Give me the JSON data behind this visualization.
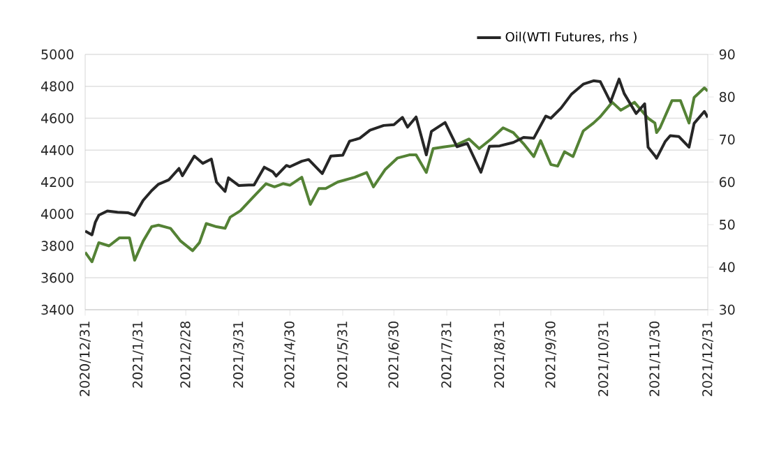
{
  "chart_data": {
    "type": "line",
    "xlim": [
      "2020-12-31",
      "2021-12-31"
    ],
    "xticks": [
      {
        "value": "2020-12-31",
        "label": "2020/12/31"
      },
      {
        "value": "2021-01-31",
        "label": "2021/1/31"
      },
      {
        "value": "2021-02-28",
        "label": "2021/2/28"
      },
      {
        "value": "2021-03-31",
        "label": "2021/3/31"
      },
      {
        "value": "2021-04-30",
        "label": "2021/4/30"
      },
      {
        "value": "2021-05-31",
        "label": "2021/5/31"
      },
      {
        "value": "2021-06-30",
        "label": "2021/6/30"
      },
      {
        "value": "2021-07-31",
        "label": "2021/7/31"
      },
      {
        "value": "2021-08-31",
        "label": "2021/8/31"
      },
      {
        "value": "2021-09-30",
        "label": "2021/9/30"
      },
      {
        "value": "2021-10-31",
        "label": "2021/10/31"
      },
      {
        "value": "2021-11-30",
        "label": "2021/11/30"
      },
      {
        "value": "2021-12-31",
        "label": "2021/12/31"
      }
    ],
    "ylim": [
      3400,
      5000
    ],
    "yticks": [
      3400,
      3600,
      3800,
      4000,
      4200,
      4400,
      4600,
      4800,
      5000
    ],
    "y2lim": [
      30,
      90
    ],
    "y2ticks": [
      30,
      40,
      50,
      60,
      70,
      80,
      90
    ],
    "grid": "y",
    "legend": "top",
    "marker": "none",
    "line_style": "solid",
    "series": [
      {
        "color": "#548235",
        "x": [
          "2020-12-31",
          "2021-01-04",
          "2021-01-08",
          "2021-01-14",
          "2021-01-20",
          "2021-01-26",
          "2021-01-29",
          "2021-02-03",
          "2021-02-08",
          "2021-02-12",
          "2021-02-19",
          "2021-02-25",
          "2021-03-04",
          "2021-03-08",
          "2021-03-12",
          "2021-03-18",
          "2021-03-23",
          "2021-03-26",
          "2021-04-01",
          "2021-04-08",
          "2021-04-16",
          "2021-04-21",
          "2021-04-26",
          "2021-04-30",
          "2021-05-07",
          "2021-05-12",
          "2021-05-17",
          "2021-05-21",
          "2021-05-28",
          "2021-06-07",
          "2021-06-14",
          "2021-06-18",
          "2021-06-25",
          "2021-07-02",
          "2021-07-09",
          "2021-07-13",
          "2021-07-19",
          "2021-07-23",
          "2021-07-29",
          "2021-08-05",
          "2021-08-13",
          "2021-08-19",
          "2021-08-26",
          "2021-09-02",
          "2021-09-08",
          "2021-09-14",
          "2021-09-20",
          "2021-09-24",
          "2021-09-30",
          "2021-10-04",
          "2021-10-08",
          "2021-10-13",
          "2021-10-19",
          "2021-10-25",
          "2021-10-29",
          "2021-11-05",
          "2021-11-10",
          "2021-11-18",
          "2021-11-26",
          "2021-11-30",
          "2021-12-01",
          "2021-12-03",
          "2021-12-10",
          "2021-12-15",
          "2021-12-20",
          "2021-12-23",
          "2021-12-29",
          "2021-12-31"
        ],
        "values": [
          3760,
          3700,
          3820,
          3800,
          3850,
          3850,
          3710,
          3830,
          3920,
          3930,
          3910,
          3830,
          3770,
          3820,
          3940,
          3920,
          3910,
          3980,
          4020,
          4100,
          4190,
          4170,
          4190,
          4180,
          4230,
          4060,
          4160,
          4160,
          4200,
          4230,
          4260,
          4170,
          4280,
          4350,
          4370,
          4370,
          4260,
          4410,
          4420,
          4430,
          4470,
          4410,
          4470,
          4540,
          4510,
          4440,
          4360,
          4460,
          4310,
          4300,
          4390,
          4360,
          4520,
          4570,
          4610,
          4700,
          4650,
          4700,
          4600,
          4570,
          4510,
          4540,
          4710,
          4710,
          4570,
          4730,
          4790,
          4770
        ]
      },
      {
        "name": "Oil(WTI Futures, rhs )",
        "color": "#262626",
        "axis": "y2",
        "x": [
          "2020-12-31",
          "2021-01-04",
          "2021-01-06",
          "2021-01-08",
          "2021-01-13",
          "2021-01-19",
          "2021-01-25",
          "2021-01-29",
          "2021-02-03",
          "2021-02-08",
          "2021-02-12",
          "2021-02-18",
          "2021-02-24",
          "2021-02-26",
          "2021-03-05",
          "2021-03-10",
          "2021-03-15",
          "2021-03-18",
          "2021-03-23",
          "2021-03-25",
          "2021-03-31",
          "2021-04-06",
          "2021-04-09",
          "2021-04-15",
          "2021-04-20",
          "2021-04-22",
          "2021-04-28",
          "2021-04-30",
          "2021-05-07",
          "2021-05-11",
          "2021-05-19",
          "2021-05-24",
          "2021-05-31",
          "2021-06-04",
          "2021-06-10",
          "2021-06-16",
          "2021-06-24",
          "2021-06-30",
          "2021-07-05",
          "2021-07-08",
          "2021-07-13",
          "2021-07-19",
          "2021-07-22",
          "2021-07-30",
          "2021-08-06",
          "2021-08-12",
          "2021-08-20",
          "2021-08-25",
          "2021-08-31",
          "2021-09-08",
          "2021-09-14",
          "2021-09-20",
          "2021-09-27",
          "2021-09-30",
          "2021-10-06",
          "2021-10-12",
          "2021-10-19",
          "2021-10-25",
          "2021-10-29",
          "2021-11-04",
          "2021-11-09",
          "2021-11-12",
          "2021-11-19",
          "2021-11-24",
          "2021-11-26",
          "2021-11-30",
          "2021-12-01",
          "2021-12-06",
          "2021-12-09",
          "2021-12-14",
          "2021-12-20",
          "2021-12-23",
          "2021-12-29",
          "2021-12-31"
        ],
        "values": [
          48.5,
          47.6,
          50.6,
          52.2,
          53.2,
          52.9,
          52.8,
          52.2,
          55.7,
          58.0,
          59.5,
          60.5,
          63.2,
          61.5,
          66.1,
          64.4,
          65.4,
          60.0,
          57.8,
          61.0,
          59.2,
          59.3,
          59.3,
          63.5,
          62.4,
          61.4,
          63.9,
          63.6,
          64.9,
          65.3,
          62.0,
          66.1,
          66.3,
          69.6,
          70.3,
          72.2,
          73.3,
          73.5,
          75.2,
          72.9,
          75.3,
          66.4,
          71.9,
          74.0,
          68.3,
          69.1,
          62.3,
          68.4,
          68.5,
          69.3,
          70.5,
          70.3,
          75.5,
          75.0,
          77.4,
          80.6,
          83.0,
          83.8,
          83.6,
          78.8,
          84.2,
          80.8,
          76.1,
          78.4,
          68.2,
          66.2,
          65.6,
          69.5,
          70.9,
          70.7,
          68.2,
          73.8,
          76.6,
          75.2
        ]
      }
    ]
  }
}
